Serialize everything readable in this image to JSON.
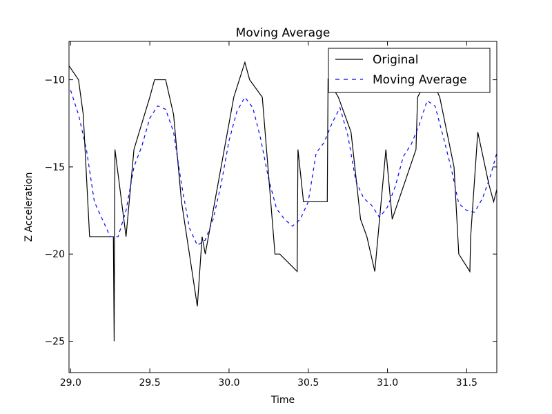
{
  "chart_data": {
    "type": "line",
    "title": "Moving Average",
    "xlabel": "Time",
    "ylabel": "Z Acceleration",
    "xlim": [
      28.99,
      31.69
    ],
    "ylim": [
      -26.8,
      -7.8
    ],
    "xticks": [
      29.0,
      29.5,
      30.0,
      30.5,
      31.0,
      31.5
    ],
    "yticks": [
      -25,
      -20,
      -15,
      -10
    ],
    "xtick_labels": [
      "29.0",
      "29.5",
      "30.0",
      "30.5",
      "31.0",
      "31.5"
    ],
    "ytick_labels": [
      "−25",
      "−20",
      "−15",
      "−10"
    ],
    "grid": false,
    "legend_position": "top-right",
    "series": [
      {
        "name": "Original",
        "color": "#000000",
        "style": "solid",
        "x": [
          28.99,
          29.05,
          29.08,
          29.12,
          29.27,
          29.275,
          29.28,
          29.35,
          29.4,
          29.5,
          29.53,
          29.6,
          29.65,
          29.7,
          29.8,
          29.83,
          29.85,
          30.03,
          30.1,
          30.13,
          30.21,
          30.29,
          30.32,
          30.43,
          30.435,
          30.47,
          30.62,
          30.625,
          30.69,
          30.77,
          30.83,
          30.87,
          30.92,
          30.99,
          31.03,
          31.18,
          31.19,
          31.25,
          31.28,
          31.33,
          31.42,
          31.45,
          31.52,
          31.525,
          31.57,
          31.64,
          31.67,
          31.69
        ],
        "y": [
          -9.2,
          -10.0,
          -12.0,
          -19.0,
          -19.0,
          -25.0,
          -14.0,
          -19.0,
          -14.0,
          -11.0,
          -10.0,
          -10.0,
          -12.0,
          -17.0,
          -23.0,
          -19.0,
          -20.0,
          -11.0,
          -9.0,
          -10.0,
          -11.0,
          -20.0,
          -20.0,
          -21.0,
          -14.0,
          -17.0,
          -17.0,
          -10.0,
          -11.0,
          -13.0,
          -18.0,
          -19.0,
          -21.0,
          -14.0,
          -18.0,
          -14.0,
          -11.0,
          -10.0,
          -10.0,
          -11.0,
          -15.0,
          -20.0,
          -21.0,
          -19.0,
          -13.0,
          -16.0,
          -17.0,
          -16.3
        ]
      },
      {
        "name": "Moving Average",
        "color": "#0000ff",
        "style": "dashed",
        "x": [
          29.0,
          29.05,
          29.1,
          29.15,
          29.2,
          29.25,
          29.3,
          29.35,
          29.4,
          29.45,
          29.5,
          29.55,
          29.6,
          29.65,
          29.7,
          29.75,
          29.8,
          29.85,
          29.9,
          29.95,
          30.0,
          30.05,
          30.1,
          30.15,
          30.2,
          30.25,
          30.3,
          30.35,
          30.4,
          30.45,
          30.5,
          30.55,
          30.6,
          30.65,
          30.7,
          30.75,
          30.8,
          30.85,
          30.9,
          30.95,
          31.0,
          31.05,
          31.1,
          31.15,
          31.2,
          31.25,
          31.3,
          31.35,
          31.4,
          31.45,
          31.5,
          31.55,
          31.6,
          31.65,
          31.69
        ],
        "y": [
          -10.6,
          -12.0,
          -14.0,
          -17.0,
          -18.0,
          -19.0,
          -19.0,
          -17.5,
          -15.0,
          -13.8,
          -12.2,
          -11.5,
          -11.7,
          -13.0,
          -16.0,
          -18.5,
          -19.5,
          -19.2,
          -18.0,
          -16.0,
          -13.5,
          -11.8,
          -11.0,
          -11.6,
          -13.4,
          -15.7,
          -17.4,
          -18.0,
          -18.4,
          -18.0,
          -17.0,
          -14.2,
          -13.6,
          -12.5,
          -11.6,
          -13.2,
          -15.8,
          -16.8,
          -17.2,
          -17.9,
          -17.3,
          -16.1,
          -14.4,
          -13.7,
          -12.6,
          -11.2,
          -11.5,
          -13.2,
          -15.0,
          -17.1,
          -17.5,
          -17.6,
          -16.8,
          -15.5,
          -14.2
        ]
      }
    ]
  }
}
